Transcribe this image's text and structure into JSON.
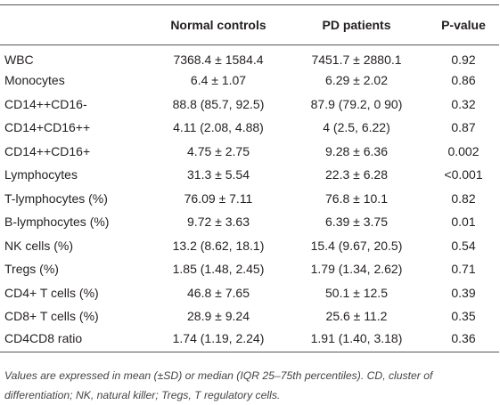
{
  "table": {
    "header": [
      "",
      "Normal controls",
      "PD patients",
      "P-value"
    ],
    "rows": [
      [
        "WBC",
        "7368.4 ± 1584.4",
        "7451.7 ± 2880.1",
        "0.92"
      ],
      [
        "Monocytes",
        "6.4 ± 1.07",
        "6.29 ± 2.02",
        "0.86"
      ],
      [
        "CD14++CD16-",
        "88.8 (85.7, 92.5)",
        "87.9 (79.2, 0 90)",
        "0.32"
      ],
      [
        "CD14+CD16++",
        "4.11 (2.08, 4.88)",
        "4 (2.5, 6.22)",
        "0.87"
      ],
      [
        "CD14++CD16+",
        "4.75 ± 2.75",
        "9.28 ± 6.36",
        "0.002"
      ],
      [
        "Lymphocytes",
        "31.3 ± 5.54",
        "22.3 ± 6.28",
        "<0.001"
      ],
      [
        "T-lymphocytes (%)",
        "76.09 ± 7.11",
        "76.8 ± 10.1",
        "0.82"
      ],
      [
        "B-lymphocytes (%)",
        "9.72 ± 3.63",
        "6.39 ± 3.75",
        "0.01"
      ],
      [
        "NK cells (%)",
        "13.2 (8.62, 18.1)",
        "15.4 (9.67, 20.5)",
        "0.54"
      ],
      [
        "Tregs (%)",
        "1.85 (1.48, 2.45)",
        "1.79 (1.34, 2.62)",
        "0.71"
      ],
      [
        "CD4+ T cells (%)",
        "46.8 ± 7.65",
        "50.1 ± 12.5",
        "0.39"
      ],
      [
        "CD8+ T cells (%)",
        "28.9 ± 9.24",
        "25.6 ± 11.2",
        "0.35"
      ],
      [
        "CD4CD8 ratio",
        "1.74 (1.19, 2.24)",
        "1.91 (1.40, 3.18)",
        "0.36"
      ]
    ]
  },
  "footnote": "Values are expressed in mean (±SD) or median (IQR 25–75th percentiles). CD, cluster of differentiation; NK, natural killer; Tregs, T regulatory cells."
}
